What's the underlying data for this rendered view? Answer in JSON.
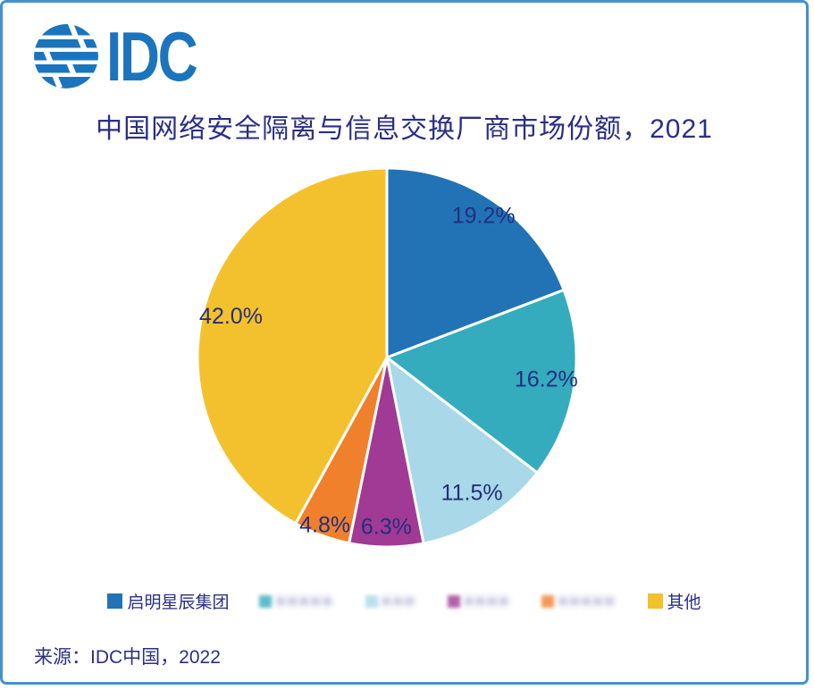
{
  "logo": {
    "text": "IDC"
  },
  "title": "中国网络安全隔离与信息交换厂商市场份额，2021",
  "source": "来源：IDC中国，2022",
  "chart_data": {
    "type": "pie",
    "title": "中国网络安全隔离与信息交换厂商市场份额，2021",
    "direction": "clockwise",
    "start_angle_deg": 0,
    "unit": "percent",
    "values": [
      19.2,
      16.2,
      11.5,
      6.3,
      4.8,
      42.0
    ],
    "labels": [
      "19.2%",
      "16.2%",
      "11.5%",
      "6.3%",
      "4.8%",
      "42.0%"
    ],
    "colors": [
      "#2273B6",
      "#35ABBE",
      "#A9D8E8",
      "#A13A94",
      "#F0802B",
      "#F4C12E"
    ],
    "label_color": "#222F7D",
    "legend_position": "bottom",
    "legend": [
      {
        "label": "启明星辰集团",
        "redacted": false
      },
      {
        "label": "",
        "redacted": true,
        "blur_blocks": 5
      },
      {
        "label": "",
        "redacted": true,
        "blur_blocks": 3
      },
      {
        "label": "",
        "redacted": true,
        "blur_blocks": 4
      },
      {
        "label": "",
        "redacted": true,
        "blur_blocks": 5
      },
      {
        "label": "其他",
        "redacted": false
      }
    ]
  }
}
